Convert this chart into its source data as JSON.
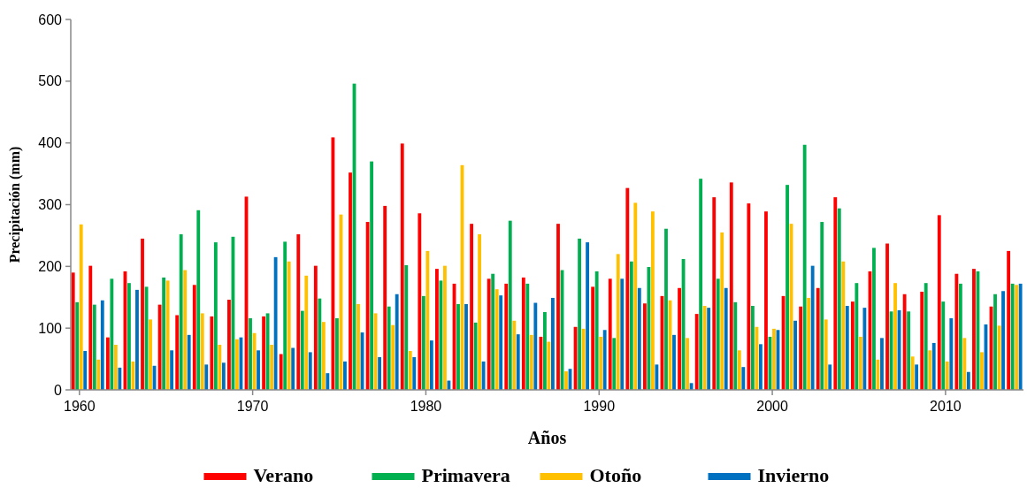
{
  "chart_data": {
    "type": "bar",
    "xlabel": "Años",
    "ylabel": "Precipitación (mm)",
    "categories": [
      "1960",
      null,
      null,
      null,
      null,
      null,
      null,
      null,
      null,
      null,
      "1970",
      null,
      null,
      null,
      null,
      null,
      null,
      null,
      null,
      null,
      "1980",
      null,
      null,
      null,
      null,
      null,
      null,
      null,
      null,
      null,
      "1990",
      null,
      null,
      null,
      null,
      null,
      null,
      null,
      null,
      null,
      "2000",
      null,
      null,
      null,
      null,
      null,
      null,
      null,
      null,
      null,
      "2010",
      null,
      null,
      null,
      null
    ],
    "series": [
      {
        "name": "Verano",
        "color": "#ff0000",
        "values": [
          190,
          201,
          85,
          192,
          245,
          138,
          121,
          170,
          119,
          146,
          313,
          119,
          58,
          252,
          201,
          409,
          352,
          272,
          298,
          399,
          286,
          196,
          172,
          269,
          180,
          172,
          182,
          86,
          269,
          102,
          167,
          180,
          327,
          140,
          152,
          165,
          123,
          312,
          336,
          302,
          289,
          152,
          135,
          165,
          312,
          143,
          192,
          237,
          155,
          159,
          283,
          188,
          196,
          135,
          225
        ]
      },
      {
        "name": "Primavera",
        "color": "#00b050",
        "values": [
          142,
          138,
          180,
          173,
          167,
          182,
          252,
          291,
          239,
          248,
          116,
          124,
          240,
          128,
          148,
          116,
          496,
          370,
          135,
          202,
          152,
          177,
          139,
          109,
          188,
          274,
          172,
          126,
          194,
          245,
          192,
          84,
          208,
          199,
          261,
          212,
          342,
          180,
          142,
          136,
          86,
          332,
          397,
          272,
          294,
          173,
          230,
          127,
          127,
          173,
          143,
          172,
          192,
          155,
          172
        ]
      },
      {
        "name": "Otoño",
        "color": "#ffc000",
        "values": [
          268,
          49,
          73,
          46,
          114,
          177,
          194,
          124,
          73,
          82,
          92,
          73,
          208,
          185,
          110,
          284,
          139,
          124,
          105,
          63,
          225,
          201,
          364,
          252,
          163,
          112,
          89,
          78,
          30,
          99,
          86,
          220,
          303,
          289,
          145,
          84,
          136,
          255,
          64,
          102,
          99,
          269,
          149,
          114,
          208,
          86,
          49,
          173,
          54,
          64,
          46,
          84,
          61,
          104,
          170
        ]
      },
      {
        "name": "Invierno",
        "color": "#0070c0",
        "values": [
          63,
          145,
          36,
          162,
          39,
          64,
          89,
          41,
          44,
          85,
          64,
          215,
          68,
          61,
          27,
          46,
          93,
          53,
          155,
          53,
          80,
          15,
          139,
          46,
          153,
          90,
          141,
          149,
          34,
          239,
          97,
          180,
          165,
          41,
          89,
          11,
          133,
          165,
          37,
          74,
          97,
          112,
          201,
          41,
          136,
          133,
          84,
          129,
          41,
          76,
          116,
          29,
          106,
          160,
          172
        ]
      }
    ],
    "ylim": [
      0,
      600
    ],
    "yticks": [
      0,
      100,
      200,
      300,
      400,
      500,
      600
    ],
    "grid": false,
    "legend": "bottom"
  }
}
